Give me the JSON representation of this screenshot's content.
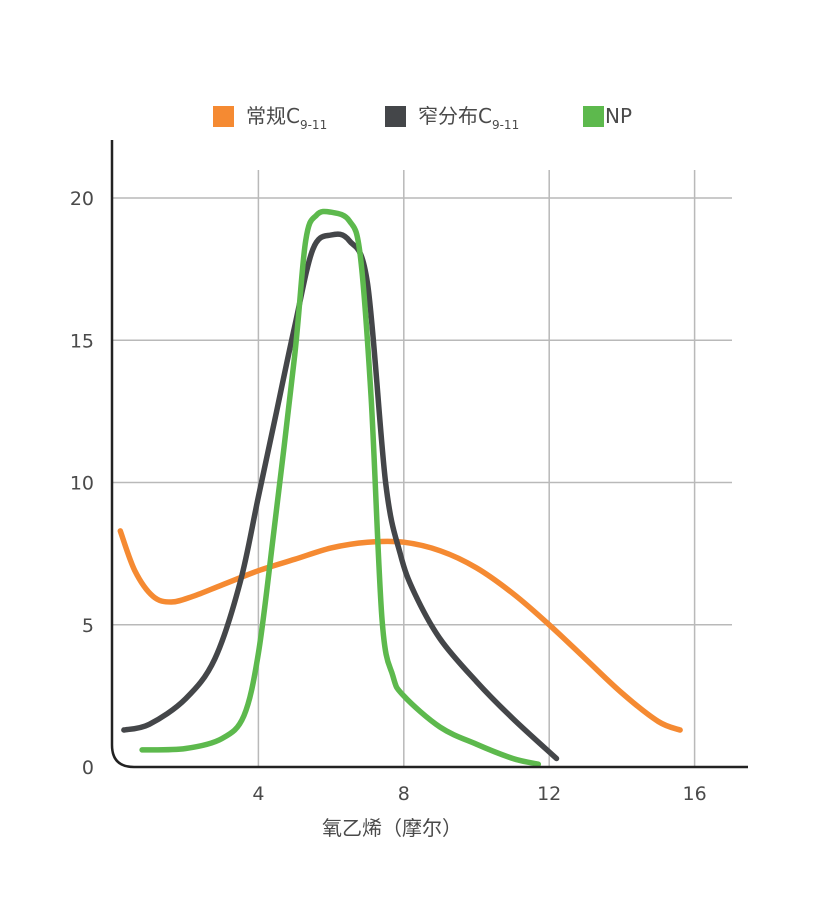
{
  "chart_data": {
    "type": "line",
    "title": "",
    "xlabel": "氧乙烯（摩尔）",
    "ylabel": "",
    "x_ticks": [
      "4",
      "8",
      "12",
      "16"
    ],
    "y_ticks": [
      "0",
      "5",
      "10",
      "15",
      "20"
    ],
    "xlim": [
      0,
      17.5
    ],
    "ylim": [
      0,
      22
    ],
    "grid": true,
    "legend_position": "top",
    "series": [
      {
        "name": "常规C9-11",
        "legend_main": "常规C",
        "legend_sub": "9-11",
        "color": "#f58a32",
        "x": [
          0.2,
          0.6,
          1.1,
          1.6,
          2.2,
          3.0,
          4.0,
          5.0,
          6.0,
          7.0,
          8.0,
          9.0,
          10.0,
          11.0,
          12.0,
          13.0,
          14.0,
          15.0,
          15.6
        ],
        "y": [
          8.3,
          6.9,
          6.0,
          5.8,
          6.0,
          6.4,
          6.9,
          7.3,
          7.7,
          7.9,
          7.9,
          7.6,
          7.0,
          6.1,
          5.0,
          3.8,
          2.6,
          1.6,
          1.3
        ]
      },
      {
        "name": "窄分布C9-11",
        "legend_main": "窄分布C",
        "legend_sub": "9-11",
        "color": "#444649",
        "x": [
          0.3,
          1.0,
          2.0,
          2.8,
          3.5,
          4.0,
          4.5,
          5.0,
          5.5,
          6.0,
          6.5,
          7.0,
          7.5,
          7.9,
          8.3,
          9.0,
          10.0,
          11.0,
          12.2
        ],
        "y": [
          1.3,
          1.5,
          2.4,
          3.8,
          6.5,
          9.5,
          12.5,
          15.5,
          18.2,
          18.7,
          18.5,
          17.0,
          10.0,
          7.5,
          6.1,
          4.5,
          3.0,
          1.7,
          0.3
        ]
      },
      {
        "name": "NP",
        "legend_main": "NP",
        "legend_sub": "",
        "color": "#5db94d",
        "x": [
          0.8,
          2.0,
          3.0,
          3.6,
          4.0,
          4.4,
          5.0,
          5.3,
          5.6,
          6.0,
          6.5,
          6.8,
          7.1,
          7.4,
          7.7,
          8.0,
          9.0,
          10.0,
          11.0,
          11.7
        ],
        "y": [
          0.6,
          0.65,
          1.0,
          1.8,
          4.0,
          8.0,
          14.5,
          18.5,
          19.4,
          19.5,
          19.2,
          18.0,
          13.0,
          5.2,
          3.2,
          2.5,
          1.4,
          0.8,
          0.3,
          0.1
        ]
      }
    ]
  }
}
